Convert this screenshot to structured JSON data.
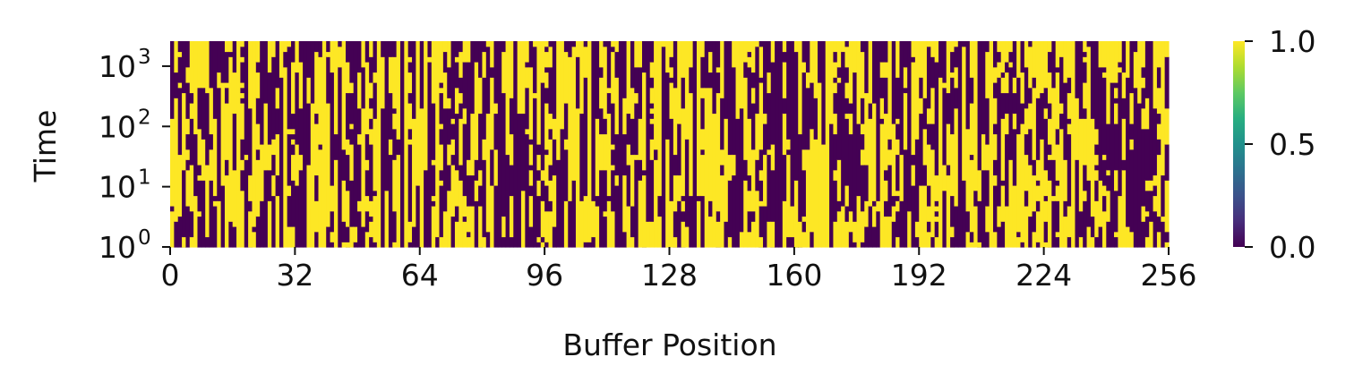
{
  "chart_data": {
    "type": "heatmap",
    "title": "",
    "xlabel": "Buffer Position",
    "ylabel": "Time",
    "x_ticks": [
      "0",
      "32",
      "64",
      "96",
      "128",
      "160",
      "192",
      "224",
      "256"
    ],
    "y_ticks": [
      {
        "base": "10",
        "exp": "0",
        "value": 1
      },
      {
        "base": "10",
        "exp": "1",
        "value": 10
      },
      {
        "base": "10",
        "exp": "2",
        "value": 100
      },
      {
        "base": "10",
        "exp": "3",
        "value": 1000
      }
    ],
    "xlim": [
      0,
      256
    ],
    "ylim": [
      1,
      2600
    ],
    "y_scale": "symlog",
    "colormap": "viridis",
    "vmin": 0.0,
    "vmax": 1.0,
    "colorbar_ticks": [
      "0.0",
      "0.5",
      "1.0"
    ],
    "colors": {
      "low": "#440154",
      "mid": "#21918c",
      "high": "#fde725"
    },
    "state_seed": 7,
    "segment_rows_per_column": 40
  }
}
